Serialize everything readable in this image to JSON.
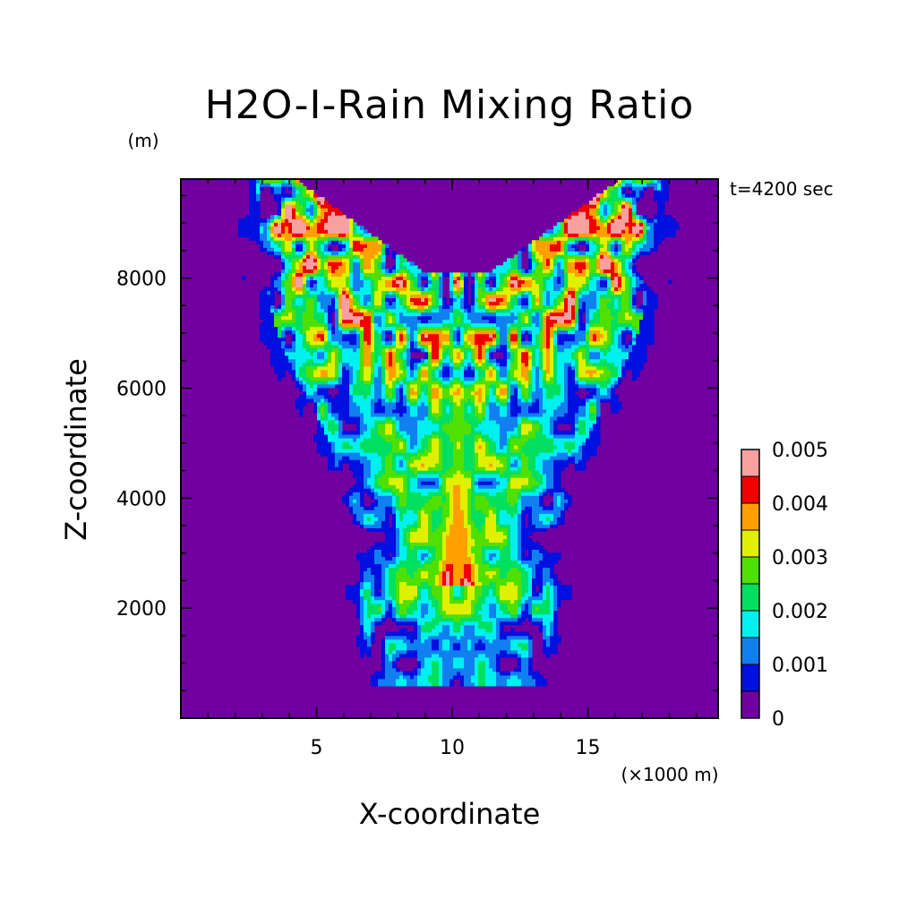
{
  "chart_data": {
    "type": "heatmap",
    "title": "H2O-I-Rain Mixing Ratio",
    "time_label": "t=4200 sec",
    "xlabel": "X-coordinate",
    "ylabel": "Z-coordinate",
    "x_unit": "(×1000 m)",
    "y_unit": "(m)",
    "xlim": [
      0,
      19.8
    ],
    "ylim": [
      0,
      9800
    ],
    "x_ticks": [
      5,
      10,
      15
    ],
    "x_tick_labels": [
      "5",
      "10",
      "15"
    ],
    "y_ticks": [
      2000,
      4000,
      6000,
      8000
    ],
    "y_tick_labels": [
      "2000",
      "4000",
      "6000",
      "8000"
    ],
    "colorbar": {
      "levels": [
        0,
        0.0005,
        0.001,
        0.0015,
        0.002,
        0.0025,
        0.003,
        0.0035,
        0.004,
        0.0045,
        0.005
      ],
      "colors": [
        "#7000a0",
        "#0010e0",
        "#1080f0",
        "#00f0f0",
        "#00e060",
        "#50e000",
        "#e0f000",
        "#ffa000",
        "#f00000",
        "#f8a0a0"
      ],
      "labels": [
        {
          "value": 0,
          "text": "0"
        },
        {
          "value": 0.001,
          "text": "0.001"
        },
        {
          "value": 0.002,
          "text": "0.002"
        },
        {
          "value": 0.003,
          "text": "0.003"
        },
        {
          "value": 0.004,
          "text": "0.004"
        },
        {
          "value": 0.005,
          "text": "0.005"
        }
      ]
    },
    "field": {
      "symmetric_about_x": 10.2,
      "core_columns": [
        {
          "x": 10.2,
          "z_bottom": 2800,
          "z_top": 4600,
          "peak": 0.004
        }
      ],
      "rain_region_z": [
        600,
        9800
      ],
      "max_value": 0.005
    }
  }
}
